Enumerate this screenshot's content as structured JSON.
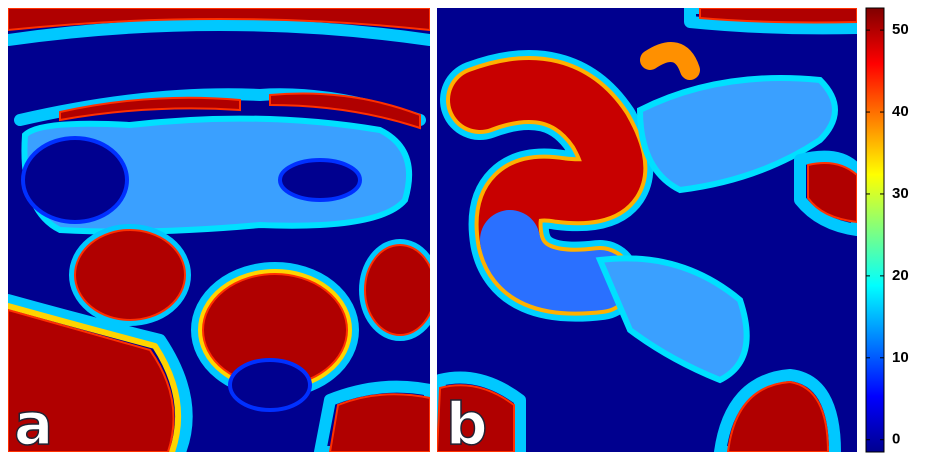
{
  "panels": [
    {
      "label": "a"
    },
    {
      "label": "b"
    }
  ],
  "colorbar": {
    "lim": [
      -1.5,
      52.7
    ],
    "ticks": [
      0,
      10,
      20,
      30,
      40,
      50
    ]
  }
}
